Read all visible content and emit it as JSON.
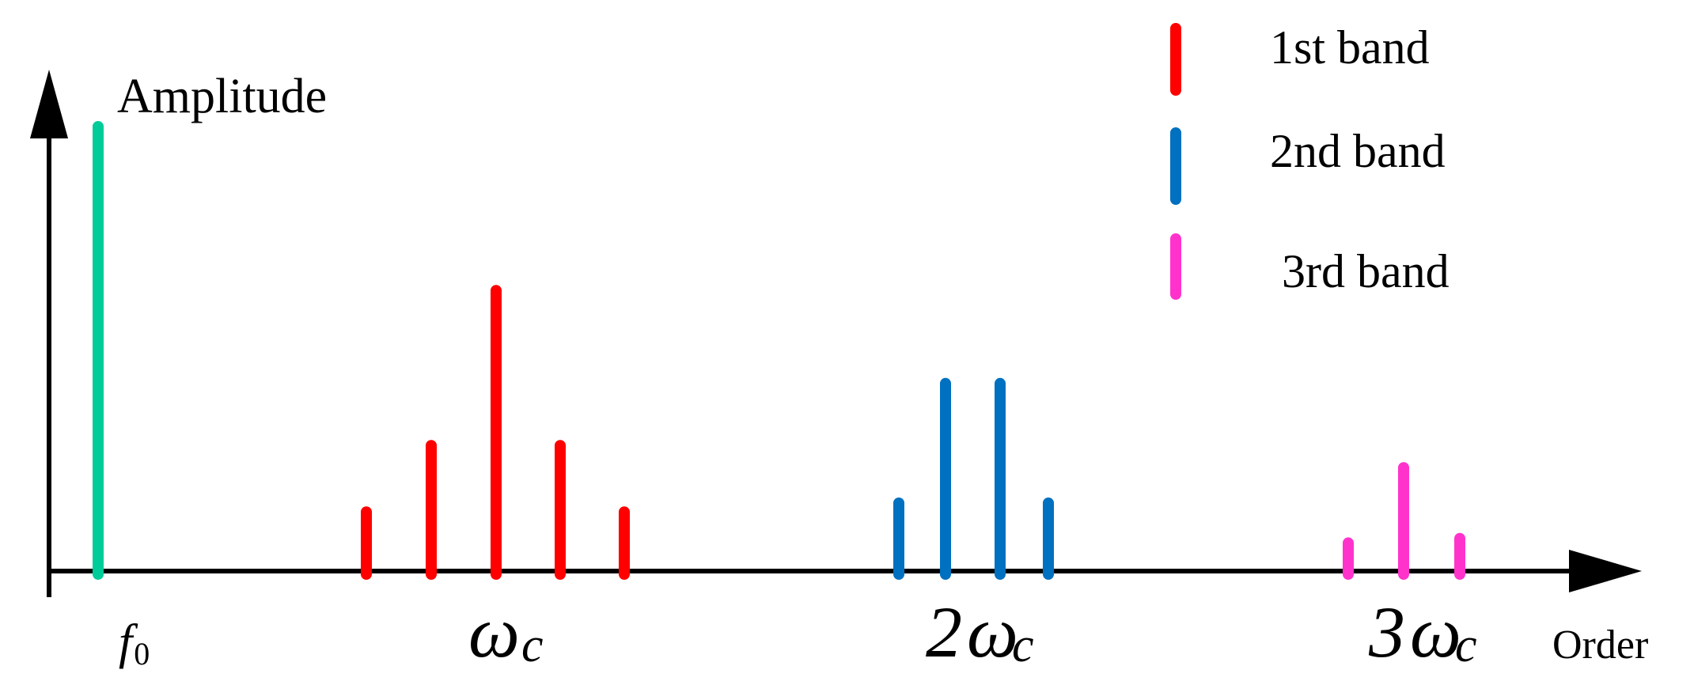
{
  "diagram": {
    "y_axis_label": "Amplitude",
    "x_axis_label": "Order",
    "tick_labels": {
      "fundamental": {
        "var": "f",
        "sub": "0"
      },
      "band1": {
        "prefix": "",
        "var": "ω",
        "sub": "c"
      },
      "band2": {
        "prefix": "2",
        "var": "ω",
        "sub": "c"
      },
      "band3": {
        "prefix": "3",
        "var": "ω",
        "sub": "c"
      }
    },
    "legend": [
      {
        "label": "1st band",
        "color": "#ff0000"
      },
      {
        "label": "2nd band",
        "color": "#0070c0"
      },
      {
        "label": "3rd band",
        "color": "#ff33cc"
      }
    ],
    "colors": {
      "fundamental": "#00cc99",
      "axis": "#000000"
    }
  },
  "chart_data": {
    "type": "bar",
    "note_units": "relative amplitude, fundamental = 1",
    "groups": [
      {
        "name": "fundamental",
        "values": [
          1.0
        ]
      },
      {
        "name": "1st band",
        "values": [
          0.13,
          0.28,
          0.63,
          0.28,
          0.13
        ]
      },
      {
        "name": "2nd band",
        "values": [
          0.15,
          0.42,
          0.42,
          0.15
        ]
      },
      {
        "name": "3rd band",
        "values": [
          0.06,
          0.23,
          0.07
        ]
      }
    ]
  }
}
